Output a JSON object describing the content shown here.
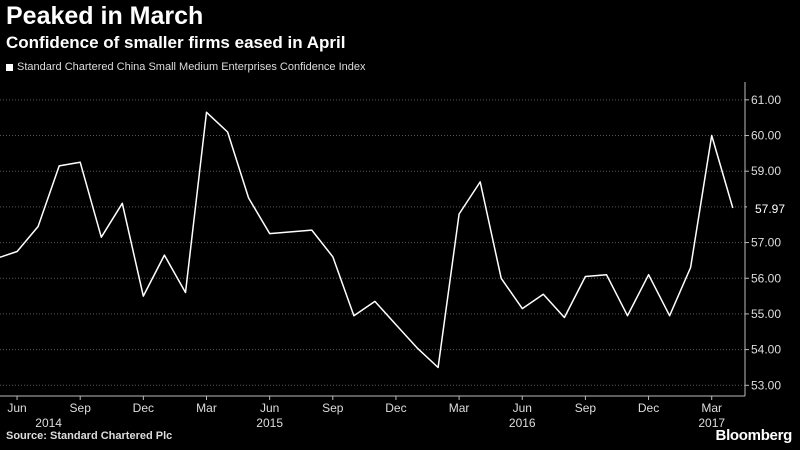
{
  "header": {
    "title": "Peaked in March",
    "subtitle": "Confidence of smaller firms eased in April",
    "legend_label": "Standard Chartered China Small Medium Enterprises Confidence Index"
  },
  "footer": {
    "source": "Source: Standard Chartered Plc",
    "brand": "Bloomberg"
  },
  "colors": {
    "background": "#000000",
    "line": "#ffffff",
    "grid": "#555555"
  },
  "chart_data": {
    "type": "line",
    "title": "Peaked in March",
    "subtitle": "Confidence of smaller firms eased in April",
    "xlabel": "",
    "ylabel": "",
    "ylim": [
      52.7,
      61.5
    ],
    "yticks": [
      53,
      54,
      55,
      56,
      57,
      58,
      59,
      60,
      61
    ],
    "ytick_labels": [
      "53.00",
      "54.00",
      "55.00",
      "56.00",
      "57.00",
      "58.00",
      "59.00",
      "60.00",
      "61.00"
    ],
    "x_period_start": "2014-05",
    "month_tick_labels": [
      {
        "label": "Jun",
        "index": 1
      },
      {
        "label": "Sep",
        "index": 4
      },
      {
        "label": "Dec",
        "index": 7
      },
      {
        "label": "Mar",
        "index": 10
      },
      {
        "label": "Jun",
        "index": 13
      },
      {
        "label": "Sep",
        "index": 16
      },
      {
        "label": "Dec",
        "index": 19
      },
      {
        "label": "Mar",
        "index": 22
      },
      {
        "label": "Jun",
        "index": 25
      },
      {
        "label": "Sep",
        "index": 28
      },
      {
        "label": "Dec",
        "index": 31
      },
      {
        "label": "Mar",
        "index": 34
      }
    ],
    "year_labels": [
      {
        "label": "2014",
        "index": 2.5
      },
      {
        "label": "2015",
        "index": 13
      },
      {
        "label": "2016",
        "index": 25
      },
      {
        "label": "2017",
        "index": 34
      }
    ],
    "series": [
      {
        "name": "Standard Chartered China Small Medium Enterprises Confidence Index",
        "values": [
          56.55,
          56.75,
          57.45,
          59.15,
          59.25,
          57.15,
          58.1,
          55.5,
          56.65,
          55.6,
          60.65,
          60.1,
          58.25,
          57.25,
          57.3,
          57.35,
          56.6,
          54.95,
          55.35,
          54.7,
          54.05,
          53.5,
          57.8,
          58.7,
          56.0,
          55.15,
          55.55,
          54.9,
          56.05,
          56.1,
          54.95,
          56.1,
          54.95,
          56.3,
          60.0,
          57.97
        ]
      }
    ],
    "last_value_label": "57.97"
  }
}
